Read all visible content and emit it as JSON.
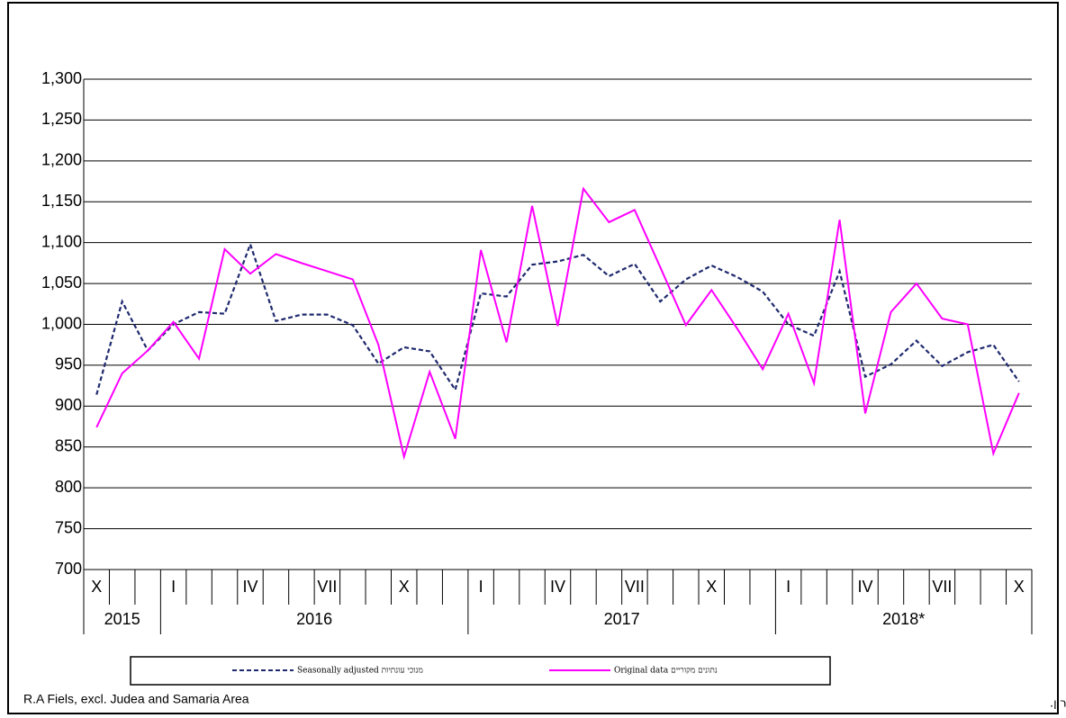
{
  "chart_data": {
    "type": "line",
    "categories": [
      "X",
      null,
      null,
      "I",
      null,
      null,
      "IV",
      null,
      null,
      "VII",
      null,
      null,
      "X",
      null,
      null,
      "I",
      null,
      null,
      "IV",
      null,
      null,
      "VII",
      null,
      null,
      "X",
      null,
      null,
      "I",
      null,
      null,
      "IV",
      null,
      null,
      "VII",
      null,
      null,
      "X"
    ],
    "years": [
      "2015",
      "2015",
      "2015",
      "2016",
      "2016",
      "2016",
      "2016",
      "2016",
      "2016",
      "2016",
      "2016",
      "2016",
      "2016",
      "2016",
      "2016",
      "2017",
      "2017",
      "2017",
      "2017",
      "2017",
      "2017",
      "2017",
      "2017",
      "2017",
      "2017",
      "2017",
      "2017",
      "2018*",
      "2018*",
      "2018*",
      "2018*",
      "2018*",
      "2018*",
      "2018*",
      "2018*",
      "2018*",
      "2018*"
    ],
    "series": [
      {
        "name": "Seasonally adjusted מנוכי עונתיות",
        "color": "#1f2a6e",
        "dash": true,
        "values": [
          914,
          1028,
          968,
          1000,
          1015,
          1013,
          1098,
          1004,
          1012,
          1012,
          999,
          952,
          972,
          967,
          920,
          1038,
          1034,
          1073,
          1077,
          1085,
          1059,
          1074,
          1028,
          1055,
          1072,
          1058,
          1040,
          1000,
          986,
          1065,
          936,
          951,
          980,
          949,
          966,
          975,
          930
        ]
      },
      {
        "name": "Original data נתונים מקוריים",
        "color": "#ff00ff",
        "dash": false,
        "values": [
          874,
          940,
          968,
          1003,
          958,
          1092,
          1062,
          1086,
          1075,
          1065,
          1055,
          975,
          838,
          942,
          860,
          1091,
          978,
          1145,
          998,
          1166,
          1125,
          1140,
          1070,
          999,
          1042,
          995,
          945,
          1013,
          928,
          1128,
          891,
          1015,
          1050,
          1007,
          1000,
          842,
          916
        ]
      }
    ],
    "ylim": [
      700,
      1300
    ],
    "yticks": [
      700,
      750,
      800,
      850,
      900,
      950,
      {
        "value": 1000,
        "label": "1,000"
      },
      {
        "value": 1050,
        "label": "1,050"
      },
      {
        "value": 1100,
        "label": "1,100"
      },
      {
        "value": 1150,
        "label": "1,150"
      },
      {
        "value": 1200,
        "label": "1,200"
      },
      {
        "value": 1250,
        "label": "1,250"
      },
      {
        "value": 1300,
        "label": "1,300"
      }
    ],
    "grid": true,
    "note_left": "R.A Fiels, excl. Judea and Samaria Area",
    "note_right": "*תאונות דרכים עם נפגעים(תיקי ת\"ד), לא כולל תאונות שאירעו באזור יהודה והשומרון."
  }
}
